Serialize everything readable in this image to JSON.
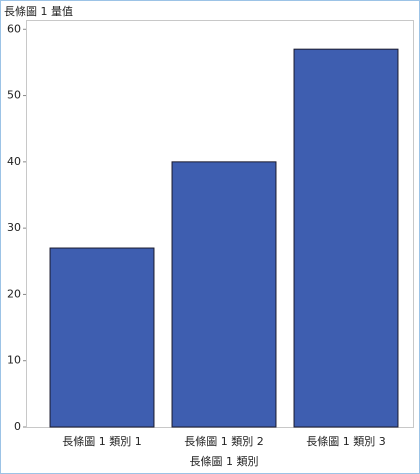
{
  "chart_data": {
    "type": "bar",
    "y_label": "長條圖 1 量值",
    "x_label": "長條圖 1 類別",
    "categories": [
      "長條圖 1 類別 1",
      "長條圖 1 類別 2",
      "長條圖 1 類別 3"
    ],
    "values": [
      27,
      40,
      57
    ],
    "color": "#3e5eb0",
    "ylim": [
      0,
      61.4
    ],
    "yticks": [
      0,
      10,
      20,
      30,
      40,
      50,
      60
    ],
    "grid": false
  }
}
